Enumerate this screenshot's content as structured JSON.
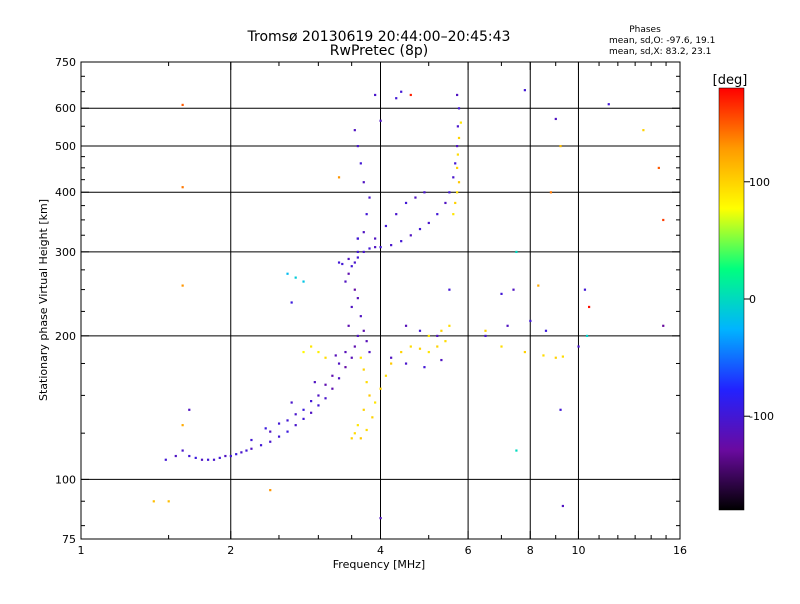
{
  "chart_data": {
    "type": "scatter",
    "title": "Tromsø 20130619 20:44:00–20:45:43",
    "subtitle": "RwPretec (8p)",
    "xlabel": "Frequency [MHz]",
    "ylabel": "Stationary phase Virtual Height [km]",
    "x_scale": "log",
    "y_scale": "log",
    "xlim": [
      1,
      16
    ],
    "ylim": [
      75,
      750
    ],
    "x_ticks": [
      1,
      2,
      4,
      6,
      8,
      10,
      16
    ],
    "x_tick_labels": [
      "1",
      "2",
      "4",
      "6",
      "8",
      "10",
      "16"
    ],
    "y_ticks": [
      75,
      100,
      200,
      300,
      400,
      500,
      600,
      750
    ],
    "y_tick_labels": [
      "75",
      "100",
      "200",
      "300",
      "400",
      "500",
      "600",
      "750"
    ],
    "grid": true,
    "legend_title": "Phases",
    "legend_lines": [
      "mean, sd,O: -97.6, 19.1",
      "mean, sd,X: 83.2, 23.1"
    ],
    "colorbar": {
      "label": "[deg]",
      "range": [
        -180,
        180
      ],
      "ticks": [
        100,
        0,
        -100
      ],
      "tick_labels": [
        "100",
        "0",
        "-100"
      ],
      "colors": [
        "#000000",
        "#6a0aa0",
        "#2222ff",
        "#00b4ff",
        "#00ff7f",
        "#ffff00",
        "#ff9a00",
        "#ff0000"
      ]
    },
    "series": [
      {
        "note_value_unit": "phase deg",
        "points": [
          [
            1.48,
            110,
            -100
          ],
          [
            1.55,
            112,
            -110
          ],
          [
            1.6,
            115,
            -105
          ],
          [
            1.65,
            112,
            -100
          ],
          [
            1.7,
            111,
            -95
          ],
          [
            1.75,
            110,
            -110
          ],
          [
            1.8,
            110,
            -100
          ],
          [
            1.85,
            110,
            -105
          ],
          [
            1.9,
            111,
            -100
          ],
          [
            1.95,
            112,
            -110
          ],
          [
            2.0,
            112,
            -100
          ],
          [
            2.05,
            113,
            -95
          ],
          [
            2.1,
            114,
            -105
          ],
          [
            2.15,
            115,
            -100
          ],
          [
            2.2,
            116,
            -110
          ],
          [
            2.3,
            118,
            -100
          ],
          [
            2.4,
            120,
            -105
          ],
          [
            2.5,
            123,
            -100
          ],
          [
            2.6,
            126,
            -95
          ],
          [
            2.7,
            130,
            -105
          ],
          [
            2.8,
            134,
            -100
          ],
          [
            2.9,
            138,
            -110
          ],
          [
            3.0,
            143,
            -100
          ],
          [
            3.1,
            148,
            -105
          ],
          [
            3.2,
            155,
            -120
          ],
          [
            3.3,
            163,
            -110
          ],
          [
            3.4,
            172,
            -125
          ],
          [
            3.5,
            180,
            -115
          ],
          [
            3.55,
            190,
            -120
          ],
          [
            3.6,
            200,
            -110
          ],
          [
            2.2,
            121,
            -100
          ],
          [
            2.4,
            126,
            -110
          ],
          [
            2.6,
            133,
            -100
          ],
          [
            2.8,
            140,
            -95
          ],
          [
            3.0,
            150,
            -110
          ],
          [
            3.2,
            165,
            -120
          ],
          [
            3.4,
            185,
            -115
          ],
          [
            2.5,
            131,
            -100
          ],
          [
            2.7,
            137,
            -105
          ],
          [
            2.9,
            146,
            -100
          ],
          [
            3.1,
            158,
            -120
          ],
          [
            3.3,
            175,
            -110
          ],
          [
            2.35,
            128,
            -95
          ],
          [
            2.65,
            145,
            -105
          ],
          [
            2.95,
            160,
            -110
          ],
          [
            3.25,
            182,
            -115
          ],
          [
            3.45,
            210,
            -120
          ],
          [
            3.5,
            230,
            -110
          ],
          [
            3.55,
            250,
            -125
          ],
          [
            3.6,
            240,
            -115
          ],
          [
            3.65,
            220,
            -110
          ],
          [
            3.7,
            205,
            -120
          ],
          [
            3.75,
            195,
            -115
          ],
          [
            3.8,
            185,
            -110
          ],
          [
            3.4,
            260,
            -110
          ],
          [
            3.45,
            270,
            -120
          ],
          [
            3.5,
            280,
            -100
          ],
          [
            3.55,
            285,
            -105
          ],
          [
            3.3,
            285,
            -100
          ],
          [
            3.35,
            283,
            -100
          ],
          [
            3.45,
            290,
            -110
          ],
          [
            3.6,
            292,
            -100
          ],
          [
            3.7,
            300,
            -105
          ],
          [
            3.8,
            305,
            -100
          ],
          [
            3.9,
            307,
            -110
          ],
          [
            4.0,
            307,
            -100
          ],
          [
            4.2,
            310,
            -105
          ],
          [
            4.4,
            316,
            -100
          ],
          [
            4.6,
            325,
            -110
          ],
          [
            4.8,
            335,
            -100
          ],
          [
            5.0,
            345,
            -105
          ],
          [
            5.2,
            360,
            -100
          ],
          [
            5.4,
            380,
            -110
          ],
          [
            5.5,
            400,
            -100
          ],
          [
            5.6,
            430,
            -105
          ],
          [
            5.65,
            460,
            -100
          ],
          [
            5.7,
            500,
            -110
          ],
          [
            5.72,
            550,
            -105
          ],
          [
            5.75,
            600,
            -100
          ],
          [
            5.7,
            640,
            -110
          ],
          [
            3.6,
            320,
            -105
          ],
          [
            3.7,
            330,
            -110
          ],
          [
            3.75,
            360,
            -100
          ],
          [
            3.8,
            390,
            -105
          ],
          [
            3.7,
            420,
            -110
          ],
          [
            3.65,
            460,
            -100
          ],
          [
            3.6,
            500,
            -105
          ],
          [
            3.55,
            540,
            -110
          ],
          [
            3.6,
            300,
            -100
          ],
          [
            3.9,
            320,
            -110
          ],
          [
            4.1,
            340,
            -100
          ],
          [
            4.3,
            360,
            -105
          ],
          [
            4.5,
            380,
            -100
          ],
          [
            4.7,
            390,
            -110
          ],
          [
            4.9,
            400,
            -105
          ],
          [
            3.65,
            180,
            90
          ],
          [
            3.7,
            170,
            100
          ],
          [
            3.75,
            160,
            95
          ],
          [
            3.8,
            150,
            105
          ],
          [
            3.7,
            140,
            100
          ],
          [
            3.6,
            130,
            90
          ],
          [
            3.55,
            125,
            95
          ],
          [
            3.5,
            122,
            100
          ],
          [
            3.65,
            122,
            105
          ],
          [
            3.75,
            127,
            95
          ],
          [
            3.85,
            135,
            100
          ],
          [
            3.9,
            145,
            90
          ],
          [
            4.0,
            155,
            100
          ],
          [
            4.1,
            165,
            95
          ],
          [
            4.2,
            175,
            105
          ],
          [
            4.4,
            185,
            100
          ],
          [
            4.6,
            190,
            95
          ],
          [
            4.8,
            188,
            100
          ],
          [
            5.0,
            185,
            90
          ],
          [
            5.2,
            190,
            100
          ],
          [
            5.4,
            195,
            95
          ],
          [
            5.6,
            360,
            90
          ],
          [
            5.65,
            380,
            100
          ],
          [
            5.7,
            400,
            95
          ],
          [
            5.75,
            420,
            105
          ],
          [
            5.7,
            450,
            100
          ],
          [
            5.72,
            480,
            95
          ],
          [
            5.75,
            520,
            100
          ],
          [
            5.8,
            560,
            90
          ],
          [
            2.8,
            185,
            80
          ],
          [
            2.9,
            190,
            90
          ],
          [
            3.0,
            185,
            85
          ],
          [
            3.1,
            180,
            95
          ],
          [
            5.0,
            200,
            90
          ],
          [
            5.3,
            205,
            100
          ],
          [
            5.5,
            210,
            95
          ],
          [
            6.5,
            205,
            100
          ],
          [
            7.0,
            190,
            95
          ],
          [
            7.8,
            185,
            100
          ],
          [
            8.5,
            182,
            95
          ],
          [
            9.0,
            180,
            100
          ],
          [
            9.3,
            181,
            95
          ],
          [
            8.3,
            255,
            120
          ],
          [
            1.6,
            610,
            150
          ],
          [
            1.6,
            410,
            140
          ],
          [
            1.6,
            255,
            130
          ],
          [
            1.4,
            90,
            110
          ],
          [
            1.5,
            90,
            110
          ],
          [
            2.4,
            95,
            130
          ],
          [
            3.3,
            430,
            130
          ],
          [
            4.6,
            640,
            170
          ],
          [
            8.8,
            400,
            140
          ],
          [
            9.2,
            500,
            110
          ],
          [
            13.5,
            540,
            100
          ],
          [
            14.5,
            450,
            150
          ],
          [
            14.8,
            350,
            160
          ],
          [
            10.5,
            230,
            175
          ],
          [
            10.4,
            200,
            -5
          ],
          [
            7.5,
            300,
            0
          ],
          [
            7.5,
            115,
            0
          ],
          [
            7.8,
            655,
            -100
          ],
          [
            9.0,
            570,
            -110
          ],
          [
            11.5,
            612,
            -100
          ],
          [
            14.8,
            210,
            -130
          ],
          [
            10.3,
            250,
            -100
          ],
          [
            10.0,
            190,
            -105
          ],
          [
            9.2,
            140,
            -100
          ],
          [
            9.3,
            88,
            -110
          ],
          [
            4.0,
            83,
            -110
          ],
          [
            4.0,
            565,
            -110
          ],
          [
            3.6,
            320,
            -100
          ],
          [
            6.5,
            200,
            -105
          ],
          [
            7.2,
            210,
            -110
          ],
          [
            8.0,
            215,
            -100
          ],
          [
            8.6,
            205,
            -95
          ],
          [
            7.4,
            250,
            -110
          ],
          [
            7.0,
            245,
            -100
          ],
          [
            4.5,
            210,
            -115
          ],
          [
            4.8,
            205,
            -100
          ],
          [
            5.2,
            200,
            -110
          ],
          [
            5.5,
            250,
            -100
          ],
          [
            4.2,
            180,
            -110
          ],
          [
            4.5,
            175,
            -105
          ],
          [
            4.9,
            172,
            -100
          ],
          [
            5.3,
            178,
            -110
          ],
          [
            4.3,
            630,
            -100
          ],
          [
            4.4,
            650,
            -100
          ],
          [
            3.9,
            640,
            -105
          ],
          [
            2.6,
            270,
            -20
          ],
          [
            2.7,
            265,
            -10
          ],
          [
            2.8,
            260,
            -15
          ],
          [
            2.65,
            235,
            -95
          ],
          [
            1.65,
            140,
            -110
          ],
          [
            1.6,
            130,
            120
          ]
        ]
      }
    ]
  }
}
